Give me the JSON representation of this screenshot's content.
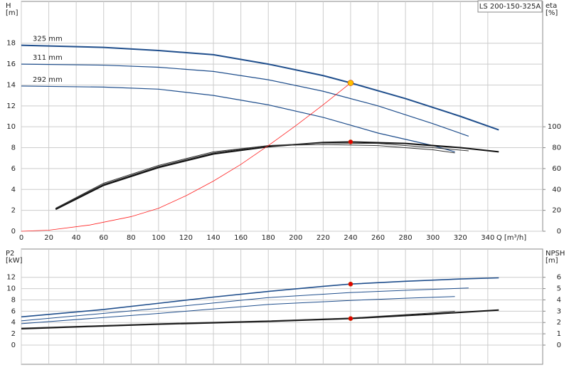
{
  "chart_data": [
    {
      "type": "line",
      "model": "LS 200-150-325A",
      "ylabel": "H",
      "yunit": "[m]",
      "y2label": "eta",
      "y2unit": "[%]",
      "xlabel": "Q [m³/h]",
      "xlim": [
        0,
        380
      ],
      "xticks": [
        0,
        20,
        40,
        60,
        80,
        100,
        120,
        140,
        160,
        180,
        200,
        220,
        240,
        260,
        280,
        300,
        320,
        340
      ],
      "ylim": [
        0,
        22
      ],
      "yticks": [
        0,
        2,
        4,
        6,
        8,
        10,
        12,
        14,
        16,
        18
      ],
      "y2lim": [
        0,
        220
      ],
      "y2ticks": [
        0,
        20,
        40,
        60,
        80,
        100
      ],
      "grid": true,
      "show_xtick_labels": true,
      "series": [
        {
          "name": "325 mm",
          "color": "#1f4e8c",
          "width": 2,
          "x": [
            0,
            60,
            100,
            140,
            180,
            220,
            240,
            280,
            320,
            348
          ],
          "values": [
            17.8,
            17.6,
            17.3,
            16.9,
            16.0,
            14.9,
            14.2,
            12.7,
            11.0,
            9.7
          ]
        },
        {
          "name": "311 mm",
          "color": "#1f4e8c",
          "width": 1.2,
          "x": [
            0,
            60,
            100,
            140,
            180,
            220,
            260,
            300,
            326
          ],
          "values": [
            16.0,
            15.9,
            15.7,
            15.3,
            14.5,
            13.4,
            12.0,
            10.3,
            9.1
          ]
        },
        {
          "name": "292 mm",
          "color": "#1f4e8c",
          "width": 1.2,
          "x": [
            0,
            60,
            100,
            140,
            180,
            220,
            260,
            300,
            316
          ],
          "values": [
            13.9,
            13.8,
            13.6,
            13.0,
            12.1,
            10.9,
            9.4,
            8.2,
            7.6
          ]
        },
        {
          "color": "#111",
          "width": 2,
          "axis": "y2",
          "x": [
            25,
            60,
            100,
            140,
            180,
            220,
            240,
            280,
            320,
            348
          ],
          "values": [
            21,
            44,
            61,
            74,
            81,
            85,
            85.5,
            84,
            80,
            76
          ]
        },
        {
          "color": "#333",
          "width": 1,
          "axis": "y2",
          "x": [
            25,
            60,
            100,
            140,
            180,
            220,
            260,
            300,
            326
          ],
          "values": [
            22,
            45,
            62,
            75,
            82,
            84.5,
            84,
            80,
            77
          ]
        },
        {
          "color": "#333",
          "width": 1,
          "axis": "y2",
          "x": [
            25,
            60,
            100,
            140,
            180,
            220,
            260,
            300,
            316
          ],
          "values": [
            22,
            46,
            63,
            76,
            82,
            83,
            82,
            78,
            75
          ]
        },
        {
          "color": "#ff2020",
          "width": 0.8,
          "x": [
            0,
            20,
            50,
            80,
            100,
            120,
            140,
            160,
            180,
            200,
            220,
            240
          ],
          "values": [
            0,
            0.1,
            0.6,
            1.4,
            2.2,
            3.4,
            4.8,
            6.4,
            8.2,
            10.1,
            12.1,
            14.2
          ]
        }
      ],
      "points": [
        {
          "x": 240,
          "y": 14.2,
          "color": "#ffc000"
        },
        {
          "x": 240,
          "y": 85.5,
          "axis": "y2",
          "color": "#e00000"
        }
      ]
    },
    {
      "type": "line",
      "ylabel": "P2",
      "yunit": "[kW]",
      "y2label": "NPSH",
      "y2unit": "[m]",
      "xlim": [
        0,
        380
      ],
      "xticks": [
        0,
        20,
        40,
        60,
        80,
        100,
        120,
        140,
        160,
        180,
        200,
        220,
        240,
        260,
        280,
        300,
        320,
        340
      ],
      "ylim": [
        -3.4,
        17
      ],
      "yticks": [
        0,
        2,
        4,
        6,
        8,
        10,
        12
      ],
      "y2lim": [
        -1.7,
        8.5
      ],
      "y2ticks": [
        0,
        1,
        2,
        3,
        4,
        5,
        6
      ],
      "grid": true,
      "show_xtick_labels": false,
      "series": [
        {
          "color": "#1f4e8c",
          "width": 1.6,
          "x": [
            0,
            60,
            100,
            140,
            180,
            220,
            240,
            280,
            320,
            348
          ],
          "values": [
            5.0,
            6.3,
            7.4,
            8.5,
            9.5,
            10.4,
            10.8,
            11.3,
            11.7,
            11.9
          ]
        },
        {
          "color": "#1f4e8c",
          "width": 1,
          "x": [
            0,
            100,
            180,
            240,
            280,
            326
          ],
          "values": [
            4.3,
            6.5,
            8.4,
            9.3,
            9.7,
            10.1
          ]
        },
        {
          "color": "#1f4e8c",
          "width": 1,
          "x": [
            0,
            100,
            180,
            240,
            280,
            316
          ],
          "values": [
            3.8,
            5.6,
            7.2,
            7.9,
            8.3,
            8.6
          ]
        },
        {
          "color": "#111",
          "width": 2,
          "axis": "y2",
          "x": [
            0,
            50,
            100,
            180,
            240,
            300,
            348
          ],
          "values": [
            1.45,
            1.65,
            1.85,
            2.1,
            2.35,
            2.75,
            3.1
          ]
        },
        {
          "color": "#333",
          "width": 1,
          "axis": "y2",
          "x": [
            0,
            50,
            100,
            180,
            240,
            300,
            316
          ],
          "values": [
            1.5,
            1.7,
            1.9,
            2.15,
            2.4,
            2.85,
            3.0
          ]
        }
      ],
      "points": [
        {
          "x": 240,
          "y": 10.8,
          "color": "#e00000"
        },
        {
          "x": 240,
          "y": 2.35,
          "axis": "y2",
          "color": "#e00000"
        }
      ]
    }
  ]
}
